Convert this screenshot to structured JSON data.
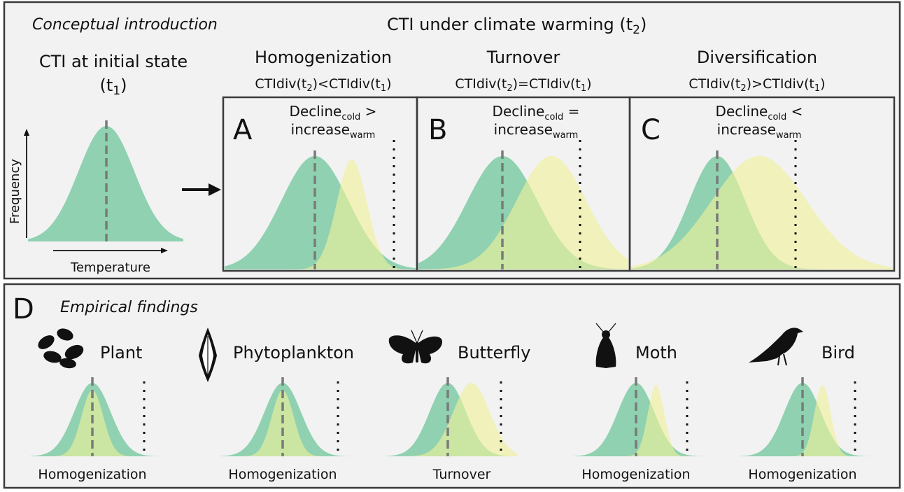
{
  "intro": {
    "heading": "Conceptual introduction",
    "warming_heading": "CTI under climate warming (t",
    "warming_sub": "2",
    "warming_tail": ")",
    "initial_title_line1": "CTI at initial state",
    "initial_title_line2_a": "(t",
    "initial_title_line2_sub": "1",
    "initial_title_line2_b": ")",
    "y_axis_label": "Frequency",
    "x_axis_label": "Temperature"
  },
  "panels": [
    {
      "letter": "A",
      "title": "Homogenization",
      "formula_a": "CTIdiv(t",
      "formula_sub1": "2",
      "formula_op": ")<CTIdiv(t",
      "formula_sub2": "1",
      "formula_end": ")",
      "decline_word": "Decline",
      "decline_sub": "cold",
      "comparator": ">",
      "increase_word": "increase",
      "increase_sub": "warm",
      "curves": {
        "cold": {
          "mean": 0.0,
          "sd": 1.0,
          "height": 1.0
        },
        "warm": {
          "mean": 1.1,
          "sd": 0.45,
          "height": 0.97
        }
      }
    },
    {
      "letter": "B",
      "title": "Turnover",
      "formula_a": "CTIdiv(t",
      "formula_sub1": "2",
      "formula_op": ")=CTIdiv(t",
      "formula_sub2": "1",
      "formula_end": ")",
      "decline_word": "Decline",
      "decline_sub": "cold",
      "comparator": "=",
      "increase_word": "increase",
      "increase_sub": "warm",
      "curves": {
        "cold": {
          "mean": 0.0,
          "sd": 1.0,
          "height": 1.0
        },
        "warm": {
          "mean": 1.4,
          "sd": 1.0,
          "height": 1.0
        }
      }
    },
    {
      "letter": "C",
      "title": "Diversification",
      "formula_a": "CTIdiv(t",
      "formula_sub1": "2",
      "formula_op": ")>CTIdiv(t",
      "formula_sub2": "1",
      "formula_end": ")",
      "decline_word": "Decline",
      "decline_sub": "cold",
      "comparator": "<",
      "increase_word": "increase",
      "increase_sub": "warm",
      "curves": {
        "cold": {
          "mean": 0.0,
          "sd": 1.0,
          "height": 1.0
        },
        "warm": {
          "mean": 1.5,
          "sd": 1.7,
          "height": 1.0
        }
      }
    }
  ],
  "empirical": {
    "letter": "D",
    "heading": "Empirical findings",
    "taxa": [
      {
        "name": "Plant",
        "icon": "leaves-icon",
        "outcome": "Homogenization",
        "cold": {
          "mean": 0,
          "sd": 1.0,
          "height": 1.0
        },
        "warm": {
          "mean": 0,
          "sd": 0.6,
          "height": 0.9
        }
      },
      {
        "name": "Phytoplankton",
        "icon": "diatom-icon",
        "outcome": "Homogenization",
        "cold": {
          "mean": 0,
          "sd": 1.0,
          "height": 1.0
        },
        "warm": {
          "mean": 0,
          "sd": 0.6,
          "height": 0.9
        }
      },
      {
        "name": "Butterfly",
        "icon": "butterfly-icon",
        "outcome": "Turnover",
        "cold": {
          "mean": 0,
          "sd": 1.0,
          "height": 1.0
        },
        "warm": {
          "mean": 1.3,
          "sd": 1.0,
          "height": 1.0
        }
      },
      {
        "name": "Moth",
        "icon": "moth-icon",
        "outcome": "Homogenization",
        "cold": {
          "mean": 0,
          "sd": 1.0,
          "height": 1.0
        },
        "warm": {
          "mean": 1.1,
          "sd": 0.45,
          "height": 0.97
        }
      },
      {
        "name": "Bird",
        "icon": "bird-icon",
        "outcome": "Homogenization",
        "cold": {
          "mean": 0,
          "sd": 1.0,
          "height": 1.0
        },
        "warm": {
          "mean": 1.1,
          "sd": 0.45,
          "height": 0.97
        }
      }
    ]
  },
  "colors": {
    "cold_fill": "#8fd1b0",
    "warm_fill": "#f1f19a",
    "mean_line": "#7a7a7a",
    "threshold": "#111111",
    "box_bg": "#f2f2f2"
  }
}
